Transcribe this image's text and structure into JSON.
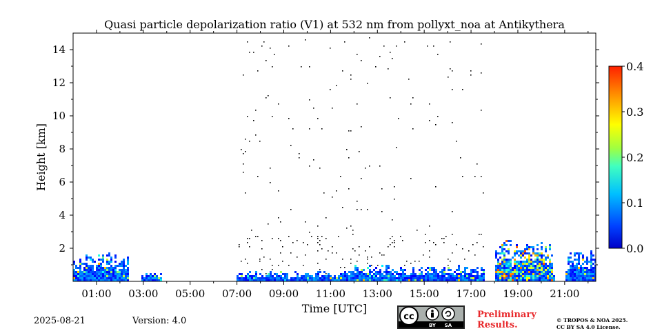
{
  "chart_data": {
    "type": "heatmap",
    "title": "Quasi particle depolarization ratio (V1) at 532 nm from pollyxt_noa at Antikythera",
    "xlabel": "Time [UTC]",
    "ylabel": "Height [km]",
    "xlim_hours": [
      0.0,
      22.33
    ],
    "ylim_km": [
      0.0,
      15.0
    ],
    "x_ticks": [
      "01:00",
      "03:00",
      "05:00",
      "07:00",
      "09:00",
      "11:00",
      "13:00",
      "15:00",
      "17:00",
      "19:00",
      "21:00"
    ],
    "x_tick_hours": [
      1,
      3,
      5,
      7,
      9,
      11,
      13,
      15,
      17,
      19,
      21
    ],
    "y_ticks": [
      2,
      4,
      6,
      8,
      10,
      12,
      14
    ],
    "colorbar": {
      "min": 0.0,
      "max": 0.4,
      "ticks": [
        "0.0",
        "0.1",
        "0.2",
        "0.3",
        "0.4"
      ],
      "tick_values": [
        0.0,
        0.1,
        0.2,
        0.3,
        0.4
      ],
      "colormap": "jet"
    },
    "measurement_periods_hours": [
      [
        0.0,
        2.35
      ],
      [
        2.9,
        3.75
      ],
      [
        6.95,
        17.55
      ],
      [
        17.95,
        20.55
      ],
      [
        21.0,
        22.33
      ]
    ],
    "typical_layer_top_km": [
      {
        "hours": [
          0.0,
          2.35
        ],
        "top": 1.5
      },
      {
        "hours": [
          2.9,
          3.75
        ],
        "top": 0.6
      },
      {
        "hours": [
          7.0,
          12.0
        ],
        "top": 0.6
      },
      {
        "hours": [
          12.0,
          17.55
        ],
        "top": 0.9
      },
      {
        "hours": [
          18.0,
          20.5
        ],
        "top": 2.2
      },
      {
        "hours": [
          21.0,
          22.33
        ],
        "top": 1.6
      }
    ]
  },
  "footer": {
    "date": "2025-08-21",
    "version": "Version: 4.0",
    "preliminary_line1": "Preliminary",
    "preliminary_line2": "Results.",
    "license_line1": "© TROPOS & NOA 2025.",
    "license_line2": "CC BY SA 4.0 License.",
    "cc_label": "cc",
    "by_label": "BY",
    "sa_label": "SA"
  },
  "colors": {
    "jet_low": "#0000c8",
    "jet_mid": "#00ff00",
    "jet_high": "#ff2000",
    "preliminary": "#e8292c"
  }
}
